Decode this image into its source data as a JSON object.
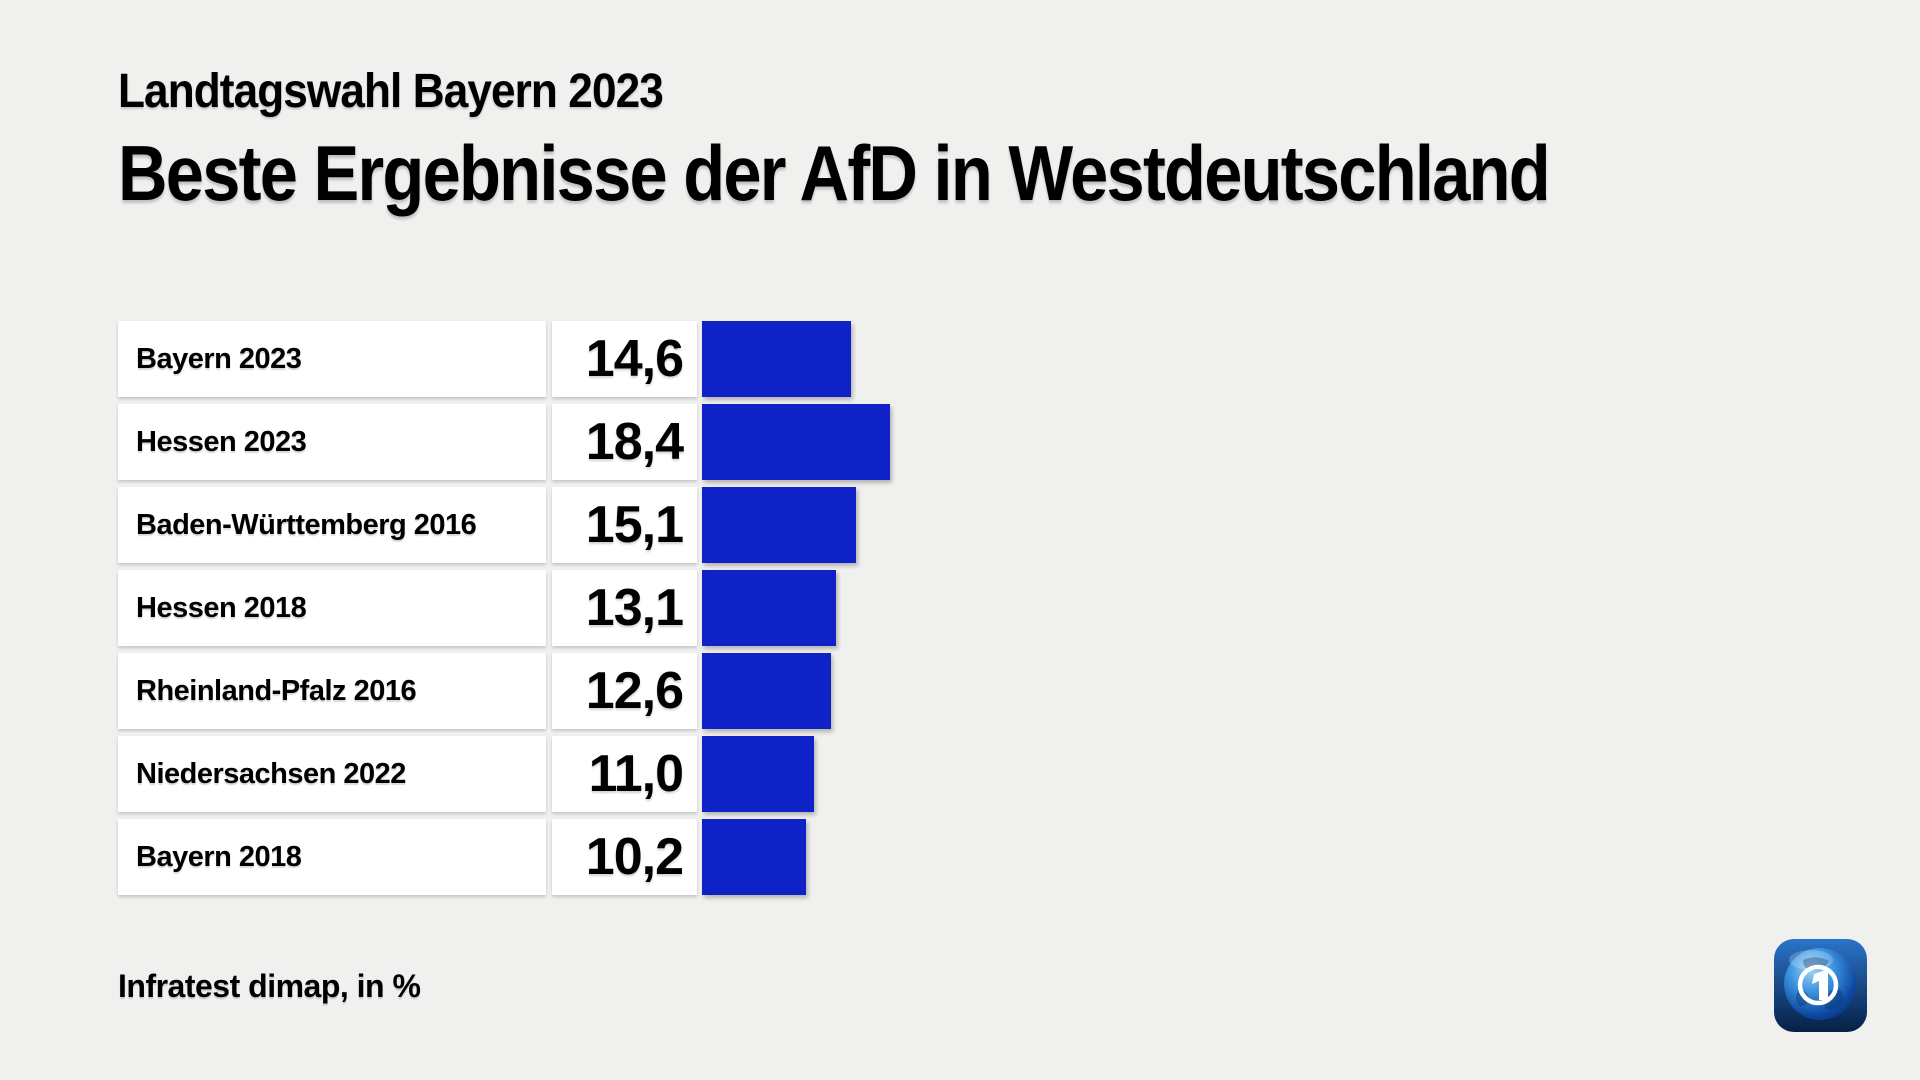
{
  "page": {
    "kicker": "Landtagswahl Bayern 2023",
    "title": "Beste Ergebnisse der AfD in Westdeutschland",
    "source": "Infratest dimap, in %"
  },
  "colors": {
    "background": "#f0f0ee",
    "bar_blue": "#0f22c7",
    "box_white": "#ffffff",
    "text_black": "#000000",
    "logo_blue_top": "#2a74c9",
    "logo_blue_bottom": "#062045"
  },
  "chart_data": {
    "type": "bar",
    "orientation": "horizontal",
    "title": "Beste Ergebnisse der AfD in Westdeutschland",
    "subtitle": "Landtagswahl Bayern 2023",
    "source": "Infratest dimap, in %",
    "unit": "%",
    "xlim": [
      0,
      20
    ],
    "grid": false,
    "legend": false,
    "categories": [
      "Bayern 2023",
      "Hessen 2023",
      "Baden-Württemberg 2016",
      "Hessen 2018",
      "Rheinland-Pfalz 2016",
      "Niedersachsen 2022",
      "Bayern 2018"
    ],
    "values": [
      14.6,
      18.4,
      15.1,
      13.1,
      12.6,
      11.0,
      10.2
    ],
    "value_labels": [
      "14,6",
      "18,4",
      "15,1",
      "13,1",
      "12,6",
      "11,0",
      "10,2"
    ]
  }
}
